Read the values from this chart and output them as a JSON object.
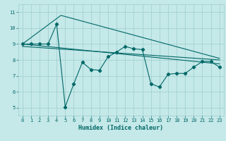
{
  "title": "",
  "xlabel": "Humidex (Indice chaleur)",
  "bg_color": "#c5e8e8",
  "grid_color": "#9ecece",
  "line_color": "#006868",
  "xlim": [
    -0.5,
    23.5
  ],
  "ylim": [
    4.5,
    11.5
  ],
  "xticks": [
    0,
    1,
    2,
    3,
    4,
    5,
    6,
    7,
    8,
    9,
    10,
    11,
    12,
    13,
    14,
    15,
    16,
    17,
    18,
    19,
    20,
    21,
    22,
    23
  ],
  "yticks": [
    5,
    6,
    7,
    8,
    9,
    10,
    11
  ],
  "series_x": [
    0,
    1,
    2,
    3,
    4,
    5,
    6,
    7,
    8,
    9,
    10,
    11,
    12,
    13,
    14,
    15,
    16,
    17,
    18,
    19,
    20,
    21,
    22,
    23
  ],
  "series_y": [
    9.0,
    9.0,
    9.0,
    9.0,
    10.25,
    5.05,
    6.5,
    7.85,
    7.4,
    7.35,
    8.2,
    8.5,
    8.85,
    8.7,
    8.65,
    6.5,
    6.3,
    7.1,
    7.15,
    7.15,
    7.55,
    7.9,
    7.9,
    7.55
  ],
  "line1_x": [
    0,
    23
  ],
  "line1_y": [
    9.0,
    7.75
  ],
  "line2_x": [
    0,
    23
  ],
  "line2_y": [
    8.85,
    8.0
  ],
  "line3_x": [
    0,
    4.5,
    23
  ],
  "line3_y": [
    9.0,
    10.8,
    8.1
  ]
}
